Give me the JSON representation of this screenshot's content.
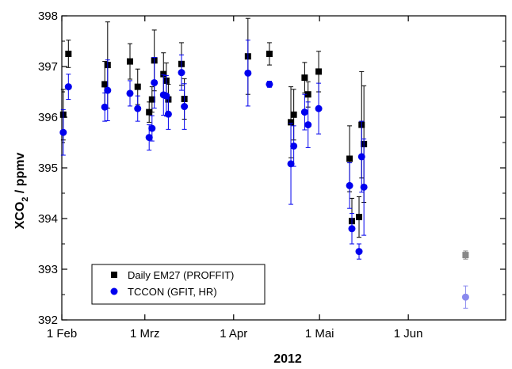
{
  "chart_data": {
    "type": "scatter",
    "title": "",
    "xlabel": "2012",
    "ylabel": "XCO",
    "ylabel_sub": "2",
    "ylabel_suffix": " / ppmv",
    "xlim": [
      0,
      155
    ],
    "ylim": [
      392,
      398
    ],
    "x_ticks": [
      {
        "label": "1 Feb",
        "value": 0
      },
      {
        "label": "1 Mrz",
        "value": 29
      },
      {
        "label": "1 Apr",
        "value": 60
      },
      {
        "label": "1 Mai",
        "value": 90
      },
      {
        "label": "1 Jun",
        "value": 121
      }
    ],
    "y_ticks": [
      392,
      393,
      394,
      395,
      396,
      397,
      398
    ],
    "legend_position": "bottom-left",
    "grid": false,
    "series": [
      {
        "name": "Daily EM27 (PROFFIT)",
        "marker": "square",
        "color": "#000000",
        "points": [
          {
            "x": 0.5,
            "y": 396.05,
            "err": 0.5
          },
          {
            "x": 2.3,
            "y": 397.25,
            "err": 0.27
          },
          {
            "x": 15.0,
            "y": 396.65,
            "err": 0.45
          },
          {
            "x": 16.0,
            "y": 397.03,
            "err": 0.85
          },
          {
            "x": 23.8,
            "y": 397.1,
            "err": 0.35
          },
          {
            "x": 26.5,
            "y": 396.6,
            "err": 0.35
          },
          {
            "x": 30.5,
            "y": 396.1,
            "err": 0.2
          },
          {
            "x": 31.5,
            "y": 396.35,
            "err": 0.25
          },
          {
            "x": 32.3,
            "y": 397.12,
            "err": 0.6
          },
          {
            "x": 35.5,
            "y": 396.85,
            "err": 0.42
          },
          {
            "x": 36.5,
            "y": 396.72,
            "err": 0.35
          },
          {
            "x": 37.2,
            "y": 396.35,
            "err": 0.3
          },
          {
            "x": 41.8,
            "y": 397.05,
            "err": 0.42
          },
          {
            "x": 42.8,
            "y": 396.36,
            "err": 0.4
          },
          {
            "x": 65.0,
            "y": 397.2,
            "err": 0.75
          },
          {
            "x": 72.5,
            "y": 397.25,
            "err": 0.22
          },
          {
            "x": 80.0,
            "y": 395.9,
            "err": 0.7
          },
          {
            "x": 81.0,
            "y": 396.05,
            "err": 0.5
          },
          {
            "x": 84.8,
            "y": 396.78,
            "err": 0.3
          },
          {
            "x": 86.0,
            "y": 396.45,
            "err": 0.25
          },
          {
            "x": 89.7,
            "y": 396.9,
            "err": 0.4
          },
          {
            "x": 100.5,
            "y": 395.18,
            "err": 0.65
          },
          {
            "x": 101.3,
            "y": 393.95,
            "err": 0.45
          },
          {
            "x": 103.8,
            "y": 394.03,
            "err": 0.4
          },
          {
            "x": 104.7,
            "y": 395.85,
            "err": 1.05
          },
          {
            "x": 105.5,
            "y": 395.47,
            "err": 1.15
          }
        ]
      },
      {
        "name": "TCCON (GFIT, HR)",
        "marker": "circle",
        "color": "#0000ee",
        "points": [
          {
            "x": 0.5,
            "y": 395.7,
            "err": 0.45
          },
          {
            "x": 2.3,
            "y": 396.6,
            "err": 0.25
          },
          {
            "x": 15.0,
            "y": 396.2,
            "err": 0.28
          },
          {
            "x": 16.0,
            "y": 396.53,
            "err": 0.6
          },
          {
            "x": 23.8,
            "y": 396.47,
            "err": 0.25
          },
          {
            "x": 26.5,
            "y": 396.17,
            "err": 0.25
          },
          {
            "x": 30.5,
            "y": 395.6,
            "err": 0.25
          },
          {
            "x": 31.5,
            "y": 395.78,
            "err": 0.25
          },
          {
            "x": 32.3,
            "y": 396.68,
            "err": 0.5
          },
          {
            "x": 35.5,
            "y": 396.44,
            "err": 0.4
          },
          {
            "x": 36.5,
            "y": 396.42,
            "err": 0.4
          },
          {
            "x": 37.2,
            "y": 396.06,
            "err": 0.3
          },
          {
            "x": 41.8,
            "y": 396.88,
            "err": 0.35
          },
          {
            "x": 42.8,
            "y": 396.21,
            "err": 0.45
          },
          {
            "x": 65.0,
            "y": 396.87,
            "err": 0.65
          },
          {
            "x": 72.5,
            "y": 396.65,
            "err": 0.06
          },
          {
            "x": 80.0,
            "y": 395.08,
            "err": 0.8
          },
          {
            "x": 81.0,
            "y": 395.43,
            "err": 0.4
          },
          {
            "x": 84.8,
            "y": 396.1,
            "err": 0.35
          },
          {
            "x": 86.0,
            "y": 395.85,
            "err": 0.45
          },
          {
            "x": 89.7,
            "y": 396.17,
            "err": 0.5
          },
          {
            "x": 100.5,
            "y": 394.65,
            "err": 0.45
          },
          {
            "x": 101.3,
            "y": 393.8,
            "err": 0.3
          },
          {
            "x": 103.8,
            "y": 393.35,
            "err": 0.15
          },
          {
            "x": 104.7,
            "y": 395.22,
            "err": 0.7
          },
          {
            "x": 105.5,
            "y": 394.62,
            "err": 0.95
          }
        ]
      }
    ],
    "reference_points": [
      {
        "x": 141.0,
        "y": 393.28,
        "err": 0.08,
        "marker": "square",
        "color": "#888888"
      },
      {
        "x": 141.0,
        "y": 392.45,
        "err": 0.22,
        "marker": "circle",
        "color": "#8a8aee"
      }
    ]
  }
}
